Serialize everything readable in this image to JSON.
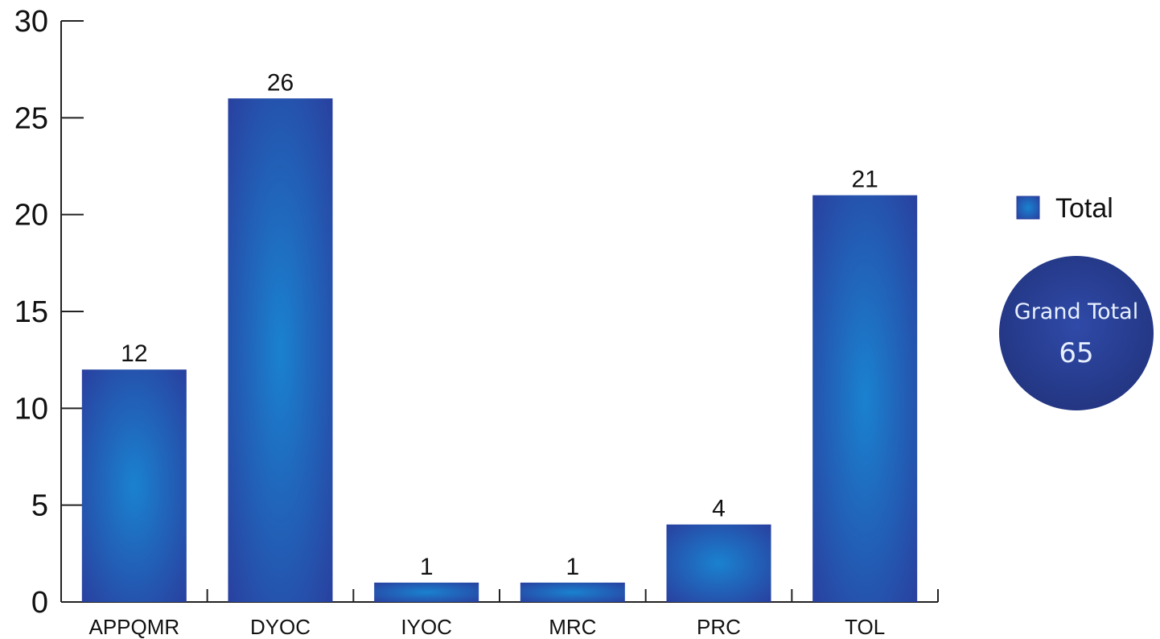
{
  "chart_data": {
    "type": "bar",
    "categories": [
      "APPQMR",
      "DYOC",
      "IYOC",
      "MRC",
      "PRC",
      "TOL"
    ],
    "series": [
      {
        "name": "Total",
        "values": [
          12,
          26,
          1,
          1,
          4,
          21
        ]
      }
    ],
    "ylim": [
      0,
      30
    ],
    "yticks": [
      0,
      5,
      10,
      15,
      20,
      25,
      30
    ],
    "grid": false,
    "legend_position": "right",
    "data_labels": true,
    "bar_color_edge": "#2a3c9c",
    "bar_color_center": "#1a82d0"
  },
  "grand_total": {
    "label": "Grand Total",
    "value": "65",
    "color": "#273a96"
  }
}
